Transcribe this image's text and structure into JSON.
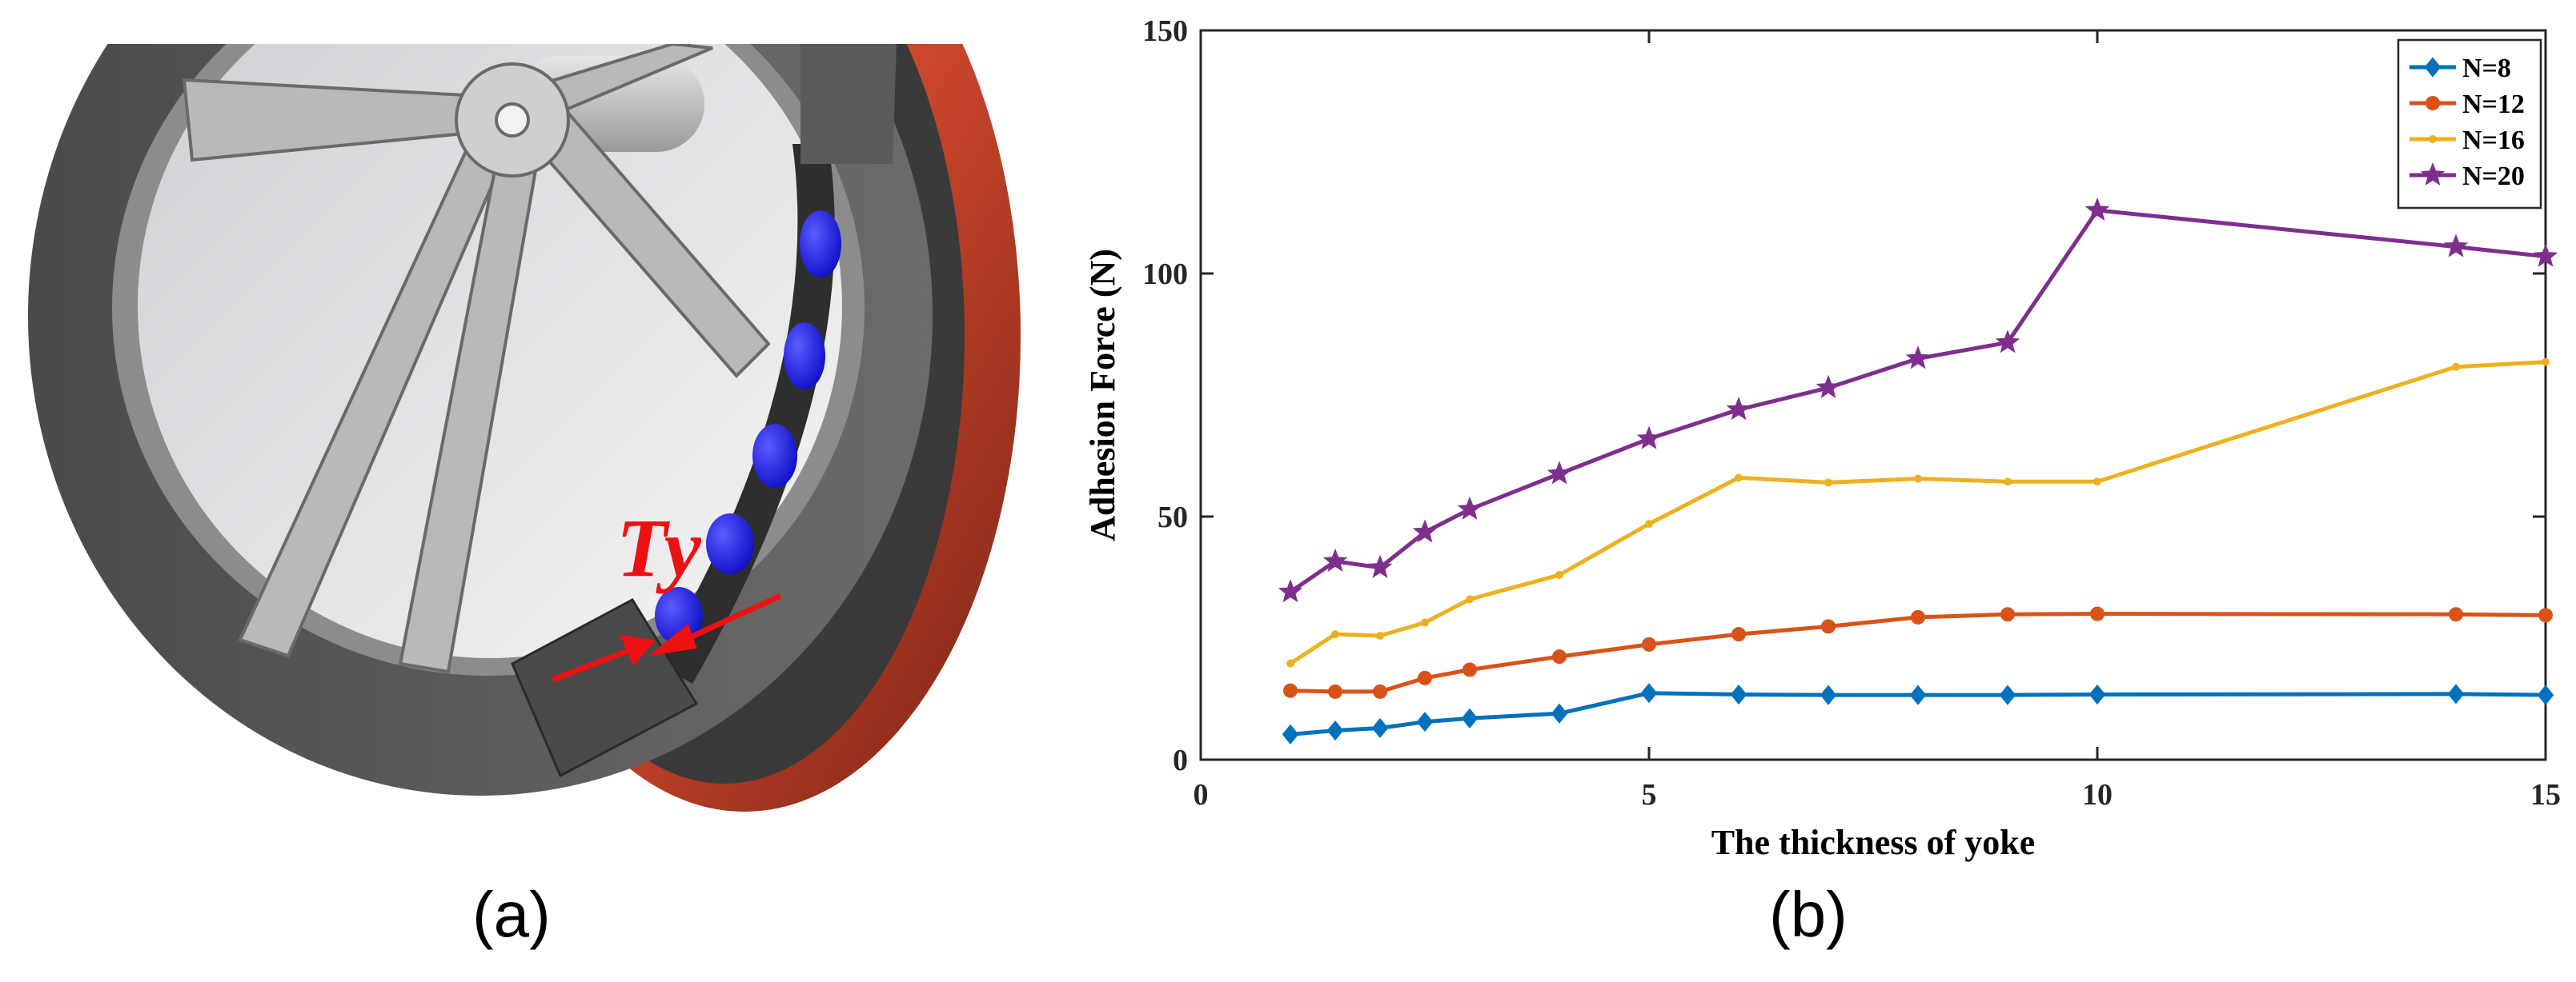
{
  "figure": {
    "panel_a": {
      "caption": "(a)",
      "annotation": "Ty",
      "colors": {
        "rim": "#5a5a5a",
        "spoke": "#b9b9bc",
        "magnet": "#1a1aee",
        "ring": "#c7442a",
        "arrow": "#ee1111"
      },
      "icons": [
        "wheel-illustration",
        "magnet-cylinder",
        "force-arrow"
      ]
    },
    "panel_b": {
      "caption": "(b)"
    }
  },
  "chart_data": {
    "type": "line",
    "title": "",
    "xlabel": "The thickness of yoke",
    "ylabel": "Adhesion Force (N)",
    "xlim": [
      0,
      15
    ],
    "ylim": [
      0,
      150
    ],
    "xticks": [
      0,
      5,
      10,
      15
    ],
    "yticks": [
      0,
      50,
      100,
      150
    ],
    "grid": false,
    "legend_position": "top-right",
    "x": [
      1,
      1.5,
      2,
      2.5,
      3,
      4,
      5,
      6,
      7,
      8,
      9,
      10,
      14,
      15
    ],
    "series": [
      {
        "name": "N=8",
        "color": "#0072bd",
        "marker": "diamond",
        "values": [
          5.2,
          6.0,
          6.5,
          7.8,
          8.5,
          9.5,
          13.7,
          13.4,
          13.3,
          13.3,
          13.3,
          13.4,
          13.5,
          13.3
        ]
      },
      {
        "name": "N=12",
        "color": "#d95319",
        "marker": "circle",
        "values": [
          14.2,
          14.0,
          14.0,
          16.8,
          18.5,
          21.2,
          23.7,
          25.8,
          27.4,
          29.3,
          29.9,
          30.0,
          29.9,
          29.7
        ]
      },
      {
        "name": "N=16",
        "color": "#edb120",
        "marker": "point",
        "values": [
          19.8,
          25.8,
          25.5,
          28.2,
          33.0,
          38.0,
          48.5,
          58.0,
          57.0,
          57.8,
          57.2,
          57.2,
          80.8,
          81.8
        ]
      },
      {
        "name": "N=20",
        "color": "#7e2f8e",
        "marker": "star",
        "values": [
          34.5,
          40.8,
          39.5,
          46.8,
          51.5,
          58.8,
          66.0,
          72.0,
          76.5,
          82.5,
          85.8,
          113.0,
          105.5,
          103.5
        ]
      }
    ]
  }
}
